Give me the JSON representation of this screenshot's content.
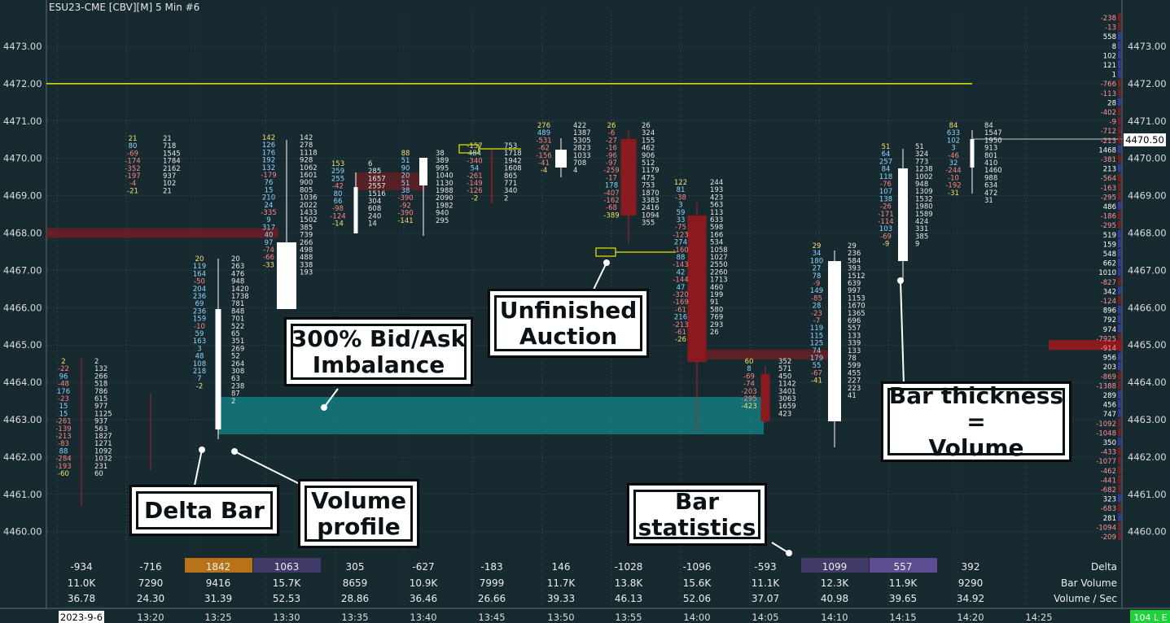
{
  "chart_title": "ESU23-CME [CBV][M]  5 Min  #6",
  "y_ticks": [
    "4473.00",
    "4472.00",
    "4471.00",
    "4470.00",
    "4469.00",
    "4468.00",
    "4467.00",
    "4466.00",
    "4465.00",
    "4464.00",
    "4463.00",
    "4462.00",
    "4461.00",
    "4460.00"
  ],
  "last_price": "4470.50",
  "time_labels": [
    "2023-9-6",
    "13:20",
    "13:25",
    "13:30",
    "13:35",
    "13:40",
    "13:45",
    "13:50",
    "13:55",
    "14:00",
    "14:05",
    "14:10",
    "14:15",
    "14:20",
    "14:25"
  ],
  "status_badge": "104 L E",
  "stats": {
    "labels": [
      "Delta",
      "Bar Volume",
      "Volume / Sec"
    ],
    "delta": [
      "-934",
      "-716",
      "1842",
      "1063",
      "305",
      "-627",
      "-183",
      "146",
      "-1028",
      "-1096",
      "-593",
      "1099",
      "557",
      "392"
    ],
    "volume": [
      "11.0K",
      "7290",
      "9416",
      "15.7K",
      "8659",
      "10.9K",
      "7999",
      "11.7K",
      "13.8K",
      "15.6K",
      "11.1K",
      "12.3K",
      "11.9K",
      "9290"
    ],
    "vps": [
      "36.78",
      "24.30",
      "31.39",
      "52.53",
      "28.86",
      "36.46",
      "26.66",
      "39.33",
      "46.13",
      "52.06",
      "37.07",
      "40.98",
      "39.65",
      "34.92"
    ],
    "delta_colors": [
      "",
      "",
      "#b87318",
      "#3f3a68",
      "",
      "",
      "",
      "",
      "",
      "",
      "",
      "#3f3a68",
      "#5d4c90",
      ""
    ]
  },
  "callouts": {
    "imbalance": "300% Bid/Ask\nImbalance",
    "unfinished": "Unfinished\nAuction",
    "delta_bar": "Delta Bar",
    "volume_profile": "Volume\nprofile",
    "bar_stats": "Bar\nstatistics",
    "thickness": "Bar thickness\n=\nVolume"
  },
  "right_profile": [
    "-238",
    "-13",
    "558",
    "8",
    "102",
    "121",
    "1",
    "-766",
    "-113",
    "28",
    "-402",
    "-9",
    "-712",
    "-213",
    "1468",
    "-381",
    "213",
    "-564",
    "-163",
    "-295",
    "486",
    "-186",
    "-295",
    "519",
    "159",
    "548",
    "662",
    "1010",
    "-827",
    "342",
    "-124",
    "896",
    "792",
    "974",
    "-7925",
    "-914",
    "956",
    "203",
    "-869",
    "-1388",
    "289",
    "456",
    "747",
    "-1092",
    "-1048",
    "350",
    "-433",
    "-1077",
    "-462",
    "-441",
    "-682",
    "323",
    "-683",
    "281",
    "-1094",
    "-209"
  ],
  "bars": [
    {
      "delta": [
        "2",
        "-22",
        "96",
        "-48",
        "176",
        "-23",
        "15",
        "15",
        "-261",
        "-139",
        "-213",
        "-83",
        "88",
        "-284",
        "-193",
        "-60"
      ],
      "vol": [
        "2",
        "132",
        "266",
        "518",
        "786",
        "615",
        "977",
        "1125",
        "937",
        "563",
        "1827",
        "1271",
        "1092",
        "1032",
        "231",
        "60"
      ]
    },
    {
      "delta": [
        "21",
        "80",
        "-69",
        "-174",
        "-352",
        "-197",
        "-4",
        "-21"
      ],
      "vol": [
        "21",
        "718",
        "1545",
        "1784",
        "2162",
        "937",
        "102",
        "21"
      ]
    },
    {
      "delta": [
        "20",
        "119",
        "164",
        "-50",
        "204",
        "236",
        "69",
        "236",
        "159",
        "-10",
        "59",
        "163",
        "3",
        "48",
        "108",
        "218",
        "7",
        "-2"
      ],
      "vol": [
        "20",
        "263",
        "476",
        "948",
        "1420",
        "1738",
        "781",
        "848",
        "701",
        "522",
        "65",
        "351",
        "269",
        "52",
        "264",
        "308",
        "63",
        "238",
        "87",
        "2"
      ]
    },
    {
      "delta": [
        "142",
        "126",
        "176",
        "192",
        "132",
        "-179",
        "76",
        "15",
        "210",
        "24",
        "-335",
        "9",
        "317",
        "40",
        "97",
        "-74",
        "-66",
        "-33"
      ],
      "vol": [
        "142",
        "278",
        "1118",
        "928",
        "1062",
        "1601",
        "900",
        "805",
        "1036",
        "2022",
        "1433",
        "1502",
        "385",
        "739",
        "266",
        "498",
        "488",
        "338",
        "193"
      ]
    },
    {
      "delta": [
        "153",
        "259",
        "255",
        "-42",
        "80",
        "66",
        "-98",
        "-124",
        "-14"
      ],
      "vol": [
        "6",
        "285",
        "1657",
        "2557",
        "1516",
        "304",
        "608",
        "240",
        "14"
      ]
    },
    {
      "delta": [
        "88",
        "51",
        "90",
        "20",
        "51",
        "38",
        "-390",
        "-92",
        "-390",
        "-141"
      ],
      "vol": [
        "38",
        "389",
        "995",
        "1040",
        "1130",
        "1988",
        "2090",
        "1982",
        "940",
        "295"
      ]
    },
    {
      "delta": [
        "-157",
        "484",
        "-340",
        "54",
        "-261",
        "-149",
        "-126",
        "-2"
      ],
      "vol": [
        "753",
        "1718",
        "1942",
        "1608",
        "865",
        "771",
        "340",
        "2"
      ]
    },
    {
      "delta": [
        "276",
        "489",
        "-531",
        "-62",
        "-156",
        "-41",
        "-4"
      ],
      "vol": [
        "422",
        "1387",
        "5305",
        "2823",
        "1033",
        "708",
        "4"
      ]
    },
    {
      "delta": [
        "26",
        "-6",
        "-27",
        "-16",
        "-96",
        "-97",
        "-259",
        "-17",
        "178",
        "-407",
        "-162",
        "-68",
        "-389"
      ],
      "vol": [
        "26",
        "324",
        "155",
        "462",
        "906",
        "512",
        "1179",
        "475",
        "753",
        "1870",
        "3383",
        "2416",
        "1094",
        "355"
      ]
    },
    {
      "delta": [
        "122",
        "81",
        "-38",
        "3",
        "59",
        "33",
        "-75",
        "-123",
        "274",
        "-160",
        "88",
        "-143",
        "42",
        "-144",
        "47",
        "-320",
        "-169",
        "-61",
        "216",
        "-213",
        "-61",
        "-26"
      ],
      "vol": [
        "244",
        "193",
        "423",
        "563",
        "113",
        "633",
        "598",
        "166",
        "534",
        "1058",
        "1027",
        "2550",
        "2260",
        "1713",
        "460",
        "199",
        "91",
        "580",
        "769",
        "293",
        "26"
      ]
    },
    {
      "delta": [
        "60",
        "8",
        "-69",
        "-74",
        "-203",
        "-295",
        "-423"
      ],
      "vol": [
        "352",
        "571",
        "450",
        "1142",
        "3401",
        "3063",
        "1659",
        "423"
      ]
    },
    {
      "delta": [
        "29",
        "34",
        "180",
        "27",
        "78",
        "-9",
        "149",
        "-85",
        "28",
        "-23",
        "-7",
        "119",
        "115",
        "125",
        "74",
        "179",
        "55",
        "-67",
        "-41"
      ],
      "vol": [
        "29",
        "236",
        "584",
        "393",
        "1512",
        "639",
        "997",
        "1153",
        "1670",
        "1365",
        "696",
        "557",
        "133",
        "339",
        "133",
        "78",
        "599",
        "455",
        "227",
        "223",
        "41"
      ]
    },
    {
      "delta": [
        "51",
        "64",
        "257",
        "84",
        "118",
        "-76",
        "107",
        "138",
        "-26",
        "-171",
        "-114",
        "103",
        "-69",
        "-9"
      ],
      "vol": [
        "51",
        "324",
        "773",
        "1238",
        "1002",
        "948",
        "1309",
        "1532",
        "1980",
        "1589",
        "424",
        "331",
        "385",
        "9"
      ]
    },
    {
      "delta": [
        "84",
        "633",
        "102",
        "3",
        "-46",
        "32",
        "-244",
        "-10",
        "-192",
        "-31"
      ],
      "vol": [
        "84",
        "1547",
        "1950",
        "913",
        "801",
        "410",
        "1460",
        "988",
        "634",
        "472",
        "31"
      ]
    }
  ]
}
